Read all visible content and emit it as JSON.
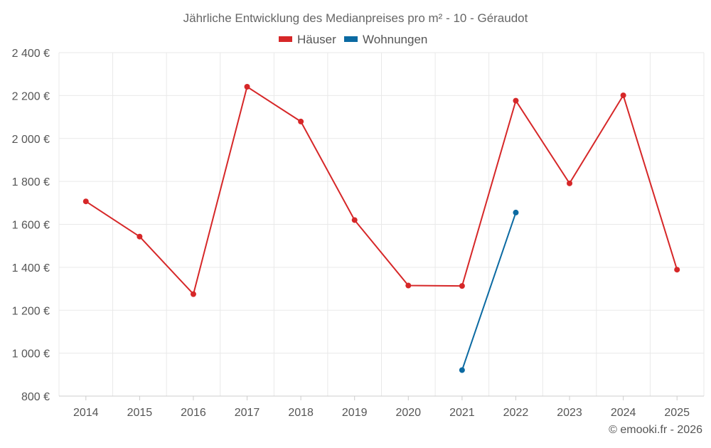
{
  "chart_data": {
    "type": "line",
    "title": "Jährliche Entwicklung des Medianpreises pro m² - 10 - Géraudot",
    "categories": [
      "2014",
      "2015",
      "2016",
      "2017",
      "2018",
      "2019",
      "2020",
      "2021",
      "2022",
      "2023",
      "2024",
      "2025"
    ],
    "series": [
      {
        "name": "Häuser",
        "color": "#d62728",
        "values": [
          1707,
          1543,
          1275,
          2241,
          2079,
          1620,
          1315,
          1313,
          2176,
          1791,
          2201,
          1389
        ]
      },
      {
        "name": "Wohnungen",
        "color": "#0b6aa2",
        "values": [
          null,
          null,
          null,
          null,
          null,
          null,
          null,
          921,
          1655,
          null,
          null,
          null
        ]
      }
    ],
    "ylim": [
      800,
      2400
    ],
    "yticks": [
      800,
      1000,
      1200,
      1400,
      1600,
      1800,
      2000,
      2200,
      2400
    ],
    "ytick_labels": [
      "800 €",
      "1 000 €",
      "1 200 €",
      "1 400 €",
      "1 600 €",
      "1 800 €",
      "2 000 €",
      "2 200 €",
      "2 400 €"
    ],
    "xlabel": "",
    "ylabel": "",
    "grid": true,
    "legend_position": "top-center"
  },
  "credit": "© emooki.fr - 2026"
}
